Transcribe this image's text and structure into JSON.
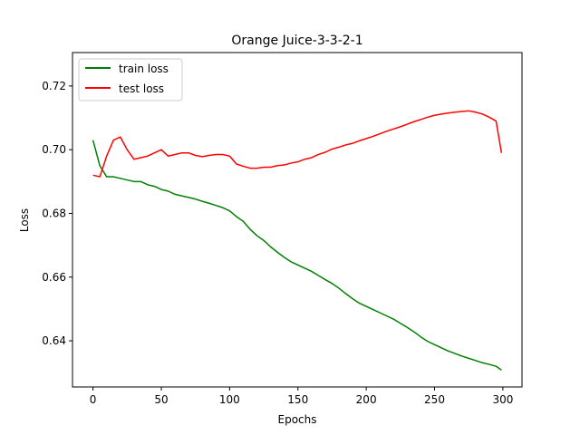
{
  "chart_data": {
    "type": "line",
    "title": "Orange Juice-3-3-2-1",
    "xlabel": "Epochs",
    "ylabel": "Loss",
    "xlim": [
      -15,
      314
    ],
    "ylim": [
      0.6255,
      0.7305
    ],
    "xticks": [
      0,
      50,
      100,
      150,
      200,
      250,
      300
    ],
    "yticks": [
      0.64,
      0.66,
      0.68,
      0.7,
      0.72
    ],
    "ytick_labels": [
      "0.64",
      "0.66",
      "0.68",
      "0.70",
      "0.72"
    ],
    "grid": false,
    "legend_position": "upper-left",
    "series": [
      {
        "name": "train loss",
        "color": "#008000",
        "x": [
          0,
          5,
          10,
          15,
          20,
          25,
          30,
          35,
          40,
          45,
          50,
          55,
          60,
          65,
          70,
          75,
          80,
          85,
          90,
          95,
          100,
          105,
          110,
          115,
          120,
          125,
          130,
          135,
          140,
          145,
          150,
          155,
          160,
          165,
          170,
          175,
          180,
          185,
          190,
          195,
          200,
          205,
          210,
          215,
          220,
          225,
          230,
          235,
          240,
          245,
          250,
          255,
          260,
          265,
          270,
          275,
          280,
          285,
          290,
          295,
          299
        ],
        "y": [
          0.703,
          0.695,
          0.6915,
          0.6915,
          0.691,
          0.6905,
          0.69,
          0.69,
          0.689,
          0.6885,
          0.6875,
          0.687,
          0.686,
          0.6855,
          0.685,
          0.6845,
          0.6838,
          0.6832,
          0.6825,
          0.6818,
          0.6808,
          0.679,
          0.6775,
          0.675,
          0.673,
          0.6715,
          0.6695,
          0.6678,
          0.6662,
          0.6648,
          0.6638,
          0.6628,
          0.6618,
          0.6605,
          0.6592,
          0.658,
          0.6565,
          0.6548,
          0.6532,
          0.6518,
          0.6508,
          0.6498,
          0.6488,
          0.6478,
          0.6468,
          0.6455,
          0.6442,
          0.6428,
          0.6412,
          0.6398,
          0.6388,
          0.6378,
          0.6368,
          0.636,
          0.6352,
          0.6345,
          0.6338,
          0.6331,
          0.6326,
          0.632,
          0.6308
        ]
      },
      {
        "name": "test loss",
        "color": "#ff0000",
        "x": [
          0,
          5,
          10,
          15,
          20,
          25,
          30,
          35,
          40,
          45,
          50,
          55,
          60,
          65,
          70,
          75,
          80,
          85,
          90,
          95,
          100,
          105,
          110,
          115,
          120,
          125,
          130,
          135,
          140,
          145,
          150,
          155,
          160,
          165,
          170,
          175,
          180,
          185,
          190,
          195,
          200,
          205,
          210,
          215,
          220,
          225,
          230,
          235,
          240,
          245,
          250,
          255,
          260,
          265,
          270,
          275,
          280,
          285,
          290,
          295,
          299
        ],
        "y": [
          0.692,
          0.6915,
          0.698,
          0.703,
          0.704,
          0.7,
          0.697,
          0.6975,
          0.698,
          0.699,
          0.7,
          0.698,
          0.6985,
          0.699,
          0.699,
          0.6982,
          0.6978,
          0.6982,
          0.6985,
          0.6985,
          0.698,
          0.6955,
          0.6948,
          0.6942,
          0.6942,
          0.6945,
          0.6945,
          0.695,
          0.6952,
          0.6958,
          0.6962,
          0.697,
          0.6975,
          0.6985,
          0.6992,
          0.7002,
          0.7008,
          0.7015,
          0.702,
          0.7028,
          0.7035,
          0.7042,
          0.705,
          0.7058,
          0.7065,
          0.7072,
          0.708,
          0.7088,
          0.7095,
          0.7102,
          0.7108,
          0.7112,
          0.7115,
          0.7118,
          0.712,
          0.7122,
          0.7118,
          0.7112,
          0.7102,
          0.709,
          0.699
        ]
      }
    ]
  }
}
